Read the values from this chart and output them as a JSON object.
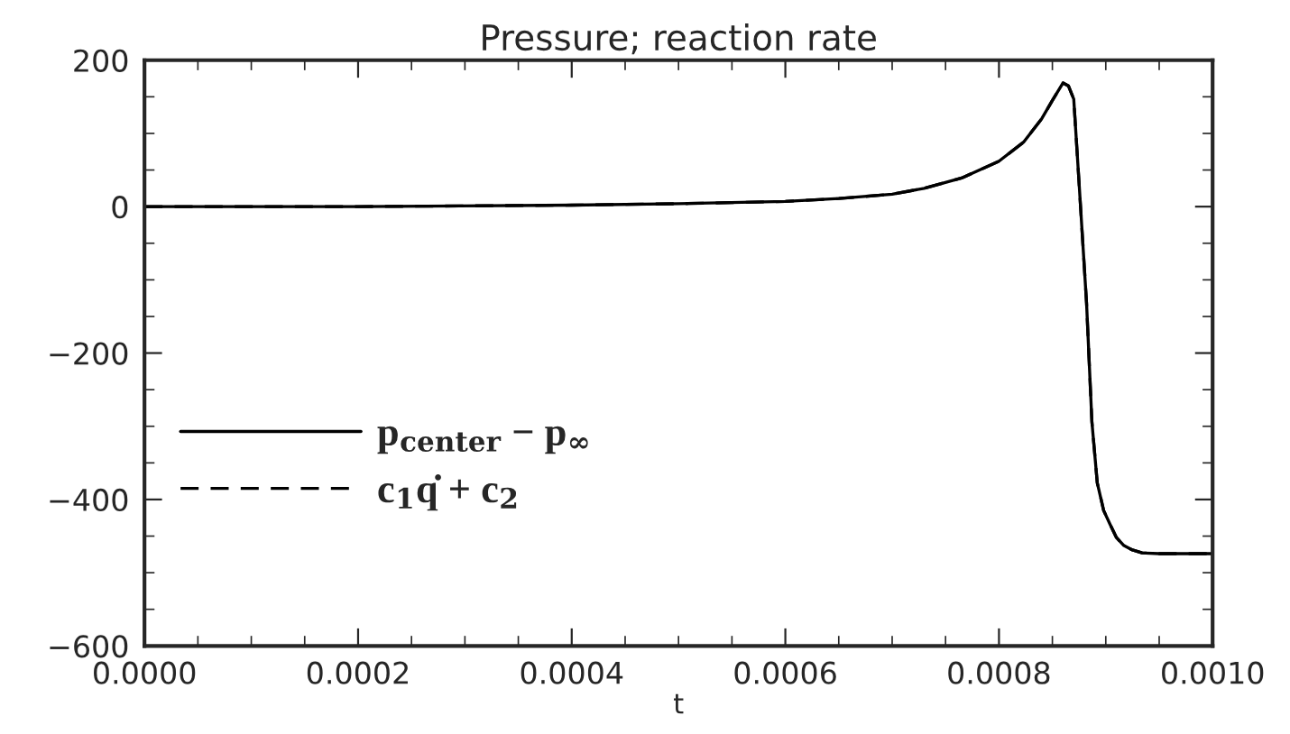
{
  "chart_data": {
    "type": "line",
    "title": "Pressure; reaction rate",
    "xlabel": "t",
    "x": [
      0,
      0.0002,
      0.0004,
      0.0005,
      0.0006,
      0.00065,
      0.0007,
      0.00073,
      0.000765,
      0.0008,
      0.000823,
      0.00084,
      0.00085,
      0.00086,
      0.000865,
      0.00087,
      0.000875,
      0.000882,
      0.000887,
      0.000892,
      0.000898,
      0.000904,
      0.00091,
      0.000917,
      0.000925,
      0.000934,
      0.00095,
      0.001
    ],
    "series": [
      {
        "name": "p$_{center}$ − p$_{∞}$",
        "color": "#000000",
        "line_style": "solid",
        "values": [
          0,
          0,
          2,
          4,
          7,
          11,
          17,
          25,
          39,
          62,
          88,
          120,
          145,
          169,
          165,
          147,
          32,
          -132,
          -294,
          -377,
          -415,
          -434,
          -452,
          -463,
          -469,
          -473,
          -474,
          -474
        ]
      },
      {
        "name": "c$_{1}$q̇ + c$_{2}$",
        "color": "#000000",
        "line_style": "dashed",
        "values": [
          0,
          0,
          2,
          4,
          7,
          11,
          17,
          25,
          39,
          62,
          88,
          120,
          145,
          169,
          165,
          147,
          32,
          -132,
          -294,
          -377,
          -415,
          -434,
          -452,
          -463,
          -469,
          -473,
          -474,
          -474
        ]
      }
    ],
    "xlim": [
      0,
      0.001
    ],
    "xticks": [
      {
        "value": 0,
        "label": "0.0000"
      },
      {
        "value": 0.0002,
        "label": "0.0002"
      },
      {
        "value": 0.0004,
        "label": "0.0004"
      },
      {
        "value": 0.0006,
        "label": "0.0006"
      },
      {
        "value": 0.0008,
        "label": "0.0008"
      },
      {
        "value": 0.001,
        "label": "0.0010"
      }
    ],
    "ylim": [
      -600,
      200
    ],
    "yticks": [
      {
        "value": -600,
        "label": "−600"
      },
      {
        "value": -400,
        "label": "−400"
      },
      {
        "value": -200,
        "label": "−200"
      },
      0,
      200
    ],
    "grid": false,
    "legend": "left",
    "marker": "none"
  }
}
